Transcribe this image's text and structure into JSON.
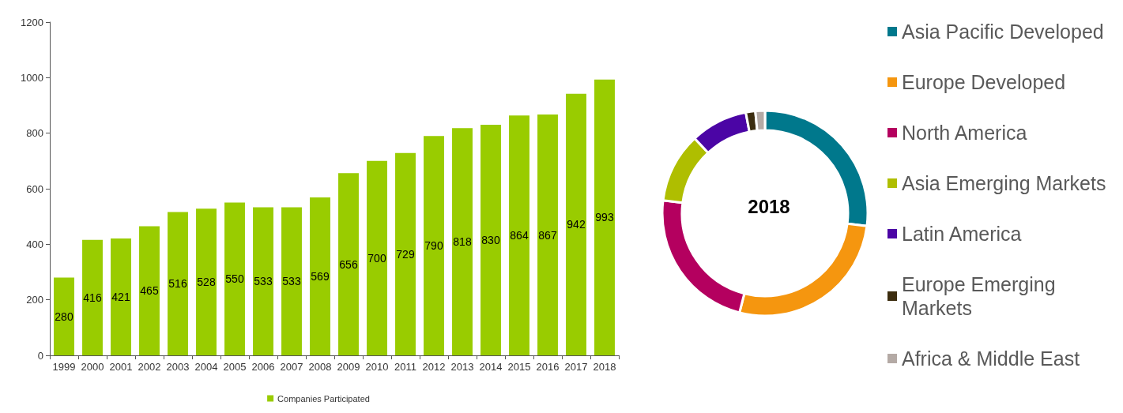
{
  "chart_data": [
    {
      "type": "bar",
      "categories": [
        "1999",
        "2000",
        "2001",
        "2002",
        "2003",
        "2004",
        "2005",
        "2006",
        "2007",
        "2008",
        "2009",
        "2010",
        "2011",
        "2012",
        "2013",
        "2014",
        "2015",
        "2016",
        "2017",
        "2018"
      ],
      "series": [
        {
          "name": "Companies Participated",
          "color": "#99cc00",
          "values": [
            280,
            416,
            421,
            465,
            516,
            528,
            550,
            533,
            533,
            569,
            656,
            700,
            729,
            790,
            818,
            830,
            864,
            867,
            942,
            993
          ]
        }
      ],
      "ylim": [
        0,
        1200
      ],
      "yticks": [
        0,
        200,
        400,
        600,
        800,
        1000,
        1200
      ],
      "grid": false,
      "legend": "bottom",
      "data_labels": true
    },
    {
      "type": "donut",
      "title": "2018",
      "categories": [
        "Asia Pacific Developed",
        "Europe Developed",
        "North America",
        "Asia Emerging Markets",
        "Latin America",
        "Europe Emerging Markets",
        "Africa & Middle East"
      ],
      "values": [
        27,
        27,
        23,
        11,
        9,
        1.5,
        1.5
      ],
      "colors": [
        "#00788c",
        "#f5960f",
        "#b4005f",
        "#afbe00",
        "#4b05a5",
        "#3c2d0f",
        "#b4aaa5"
      ],
      "legend": "right"
    }
  ]
}
